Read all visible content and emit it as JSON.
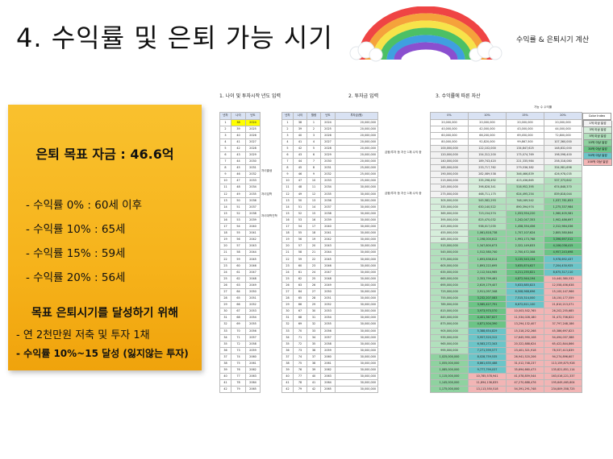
{
  "title": "4. 수익률 및 은퇴 가능 시기",
  "subtitle": "수익률 & 은퇴시기 계산",
  "summary": {
    "target": "은퇴 목표 자금 : 46.6억",
    "rates": [
      "- 수익률    0% : 60세 이후",
      "- 수익률 10% : 65세",
      "- 수익률 15% : 59세",
      "- 수익률 20% : 56세"
    ],
    "goal_heading": "목표 은퇴시기를 달성하기 위해",
    "goal_items": [
      "- 연 2천만원 저축 및 투자 1채",
      "- 수익률 10%~15 달성 (잃지않는 투자)"
    ]
  },
  "sections": {
    "s1": "1. 나이 및 투자시작 년도 입력",
    "s2": "2. 투자금 입력",
    "s3": "3. 수익률에 따른 자산"
  },
  "notes": {
    "n1": "금융/투자 등 자산 1채 수익 중",
    "n2": "금융/투자 등 자산 1채 수익 중",
    "side_a": "자녀출생",
    "side_b": "자녀입학",
    "side_c": "자녀대학진학"
  },
  "sheet": {
    "t1_headers": [
      "년차",
      "나이",
      "년도"
    ],
    "t2_headers": [
      "년차",
      "나이",
      "월령",
      "년도"
    ],
    "t3_header": "투자금(원)",
    "t4_headers": [
      "0%",
      "10%",
      "15%",
      "20%"
    ],
    "t4_note": "가능 수 수익률",
    "rows": [
      {
        "n": 1,
        "age": 38,
        "yr": 2024,
        "inv": "20,000,000",
        "r0": "20,000,000",
        "r10": "20,000,000",
        "r15": "20,000,000",
        "r20": "20,000,000"
      },
      {
        "n": 2,
        "age": 39,
        "yr": 2025,
        "inv": "20,000,000",
        "r0": "40,000,000",
        "r10": "42,000,000",
        "r15": "43,000,000",
        "r20": "44,000,000"
      },
      {
        "n": 3,
        "age": 40,
        "yr": 2026,
        "inv": "20,000,000",
        "r0": "60,000,000",
        "r10": "66,200,000",
        "r15": "69,450,000",
        "r20": "72,800,000"
      },
      {
        "n": 4,
        "age": 41,
        "yr": 2027,
        "inv": "20,000,000",
        "r0": "80,000,000",
        "r10": "92,820,000",
        "r15": "99,867,500",
        "r20": "107,360,000"
      },
      {
        "n": 5,
        "age": 42,
        "yr": 2028,
        "inv": "20,000,000",
        "r0": "100,000,000",
        "r10": "122,102,000",
        "r15": "134,847,625",
        "r20": "148,832,000"
      },
      {
        "n": 6,
        "age": 43,
        "yr": 2029,
        "inv": "20,000,000",
        "r0": "120,000,000",
        "r10": "154,312,200",
        "r15": "175,074,769",
        "r20": "198,598,400"
      },
      {
        "n": 7,
        "age": 44,
        "yr": 2030,
        "inv": "20,000,000",
        "r0": "140,000,000",
        "r10": "189,743,420",
        "r15": "221,335,984",
        "r20": "258,318,080"
      },
      {
        "n": 8,
        "age": 45,
        "yr": 2031,
        "inv": "25,000,000",
        "r0": "165,000,000",
        "r10": "233,717,762",
        "r15": "279,536,382",
        "r20": "334,981,696"
      },
      {
        "n": 9,
        "age": 46,
        "yr": 2032,
        "inv": "25,000,000",
        "r0": "190,000,000",
        "r10": "282,089,538",
        "r15": "346,466,839",
        "r20": "426,978,035"
      },
      {
        "n": 10,
        "age": 47,
        "yr": 2033,
        "inv": "25,000,000",
        "r0": "215,000,000",
        "r10": "335,298,492",
        "r15": "423,436,865",
        "r20": "537,373,642"
      },
      {
        "n": 11,
        "age": 48,
        "yr": 2034,
        "inv": "30,000,000",
        "r0": "245,000,000",
        "r10": "398,828,341",
        "r15": "516,952,395",
        "r20": "674,848,370"
      },
      {
        "n": 12,
        "age": 49,
        "yr": 2035,
        "inv": "30,000,000",
        "r0": "275,000,000",
        "r10": "468,711,175",
        "r15": "624,495,254",
        "r20": "839,818,044"
      },
      {
        "n": 13,
        "age": 50,
        "yr": 2036,
        "inv": "30,000,000",
        "r0": "305,000,000",
        "r10": "545,582,293",
        "r15": "748,169,542",
        "r20": "1,037,781,653"
      },
      {
        "n": 14,
        "age": 51,
        "yr": 2037,
        "inv": "30,000,000",
        "r0": "335,000,000",
        "r10": "630,140,522",
        "r15": "890,394,974",
        "r20": "1,275,337,984"
      },
      {
        "n": 15,
        "age": 52,
        "yr": 2038,
        "inv": "30,000,000",
        "r0": "365,000,000",
        "r10": "723,154,574",
        "r15": "1,053,954,220",
        "r20": "1,560,405,581"
      },
      {
        "n": 16,
        "age": 53,
        "yr": 2039,
        "inv": "30,000,000",
        "r0": "395,000,000",
        "r10": "825,470,032",
        "r15": "1,242,047,353",
        "r20": "1,902,486,697"
      },
      {
        "n": 17,
        "age": 54,
        "yr": 2040,
        "inv": "30,000,000",
        "r0": "425,000,000",
        "r10": "938,017,035",
        "r15": "1,458,354,456",
        "r20": "2,312,984,036"
      },
      {
        "n": 18,
        "age": 55,
        "yr": 2041,
        "inv": "30,000,000",
        "r0": "455,000,000",
        "r10": "1,061,818,738",
        "r15": "1,707,107,624",
        "r20": "2,805,580,844"
      },
      {
        "n": 19,
        "age": 56,
        "yr": 2042,
        "inv": "30,000,000",
        "r0": "485,000,000",
        "r10": "1,198,000,612",
        "r15": "1,993,173,768",
        "r20": "3,396,697,012"
      },
      {
        "n": 20,
        "age": 57,
        "yr": 2043,
        "inv": "30,000,000",
        "r0": "515,000,000",
        "r10": "1,347,800,673",
        "r15": "2,322,149,833",
        "r20": "4,106,036,415"
      },
      {
        "n": 21,
        "age": 58,
        "yr": 2044,
        "inv": "30,000,000",
        "r0": "545,000,000",
        "r10": "1,512,580,740",
        "r15": "2,700,472,308",
        "r20": "4,957,243,698"
      },
      {
        "n": 22,
        "age": 59,
        "yr": 2045,
        "inv": "30,000,000",
        "r0": "575,000,000",
        "r10": "1,693,838,814",
        "r15": "3,135,543,154",
        "r20": "5,978,692,437"
      },
      {
        "n": 23,
        "age": 60,
        "yr": 2046,
        "inv": "30,000,000",
        "r0": "605,000,000",
        "r10": "1,893,222,695",
        "r15": "3,635,874,627",
        "r20": "7,204,430,925"
      },
      {
        "n": 24,
        "age": 61,
        "yr": 2047,
        "inv": "30,000,000",
        "r0": "635,000,000",
        "r10": "2,112,544,965",
        "r15": "4,211,255,821",
        "r20": "8,675,317,110"
      },
      {
        "n": 25,
        "age": 62,
        "yr": 2048,
        "inv": "30,000,000",
        "r0": "665,000,000",
        "r10": "2,353,799,461",
        "r15": "4,872,944,194",
        "r20": "10,440,380,532"
      },
      {
        "n": 26,
        "age": 63,
        "yr": 2049,
        "inv": "30,000,000",
        "r0": "695,000,000",
        "r10": "2,619,179,407",
        "r15": "5,633,885,823",
        "r20": "12,558,456,638"
      },
      {
        "n": 27,
        "age": 64,
        "yr": 2050,
        "inv": "30,000,000",
        "r0": "725,000,000",
        "r10": "2,911,097,348",
        "r15": "6,508,968,696",
        "r20": "15,100,147,966"
      },
      {
        "n": 28,
        "age": 65,
        "yr": 2051,
        "inv": "30,000,000",
        "r0": "755,000,000",
        "r10": "3,232,207,083",
        "r15": "7,515,314,000",
        "r20": "18,150,177,559"
      },
      {
        "n": 29,
        "age": 66,
        "yr": 2052,
        "inv": "30,000,000",
        "r0": "785,000,000",
        "r10": "3,585,427,791",
        "r15": "8,672,611,100",
        "r20": "21,810,213,071"
      },
      {
        "n": 30,
        "age": 67,
        "yr": 2053,
        "inv": "30,000,000",
        "r0": "815,000,000",
        "r10": "3,973,970,570",
        "r15": "10,003,502,765",
        "r20": "26,202,255,685"
      },
      {
        "n": 31,
        "age": 68,
        "yr": 2054,
        "inv": "30,000,000",
        "r0": "845,000,000",
        "r10": "4,401,367,627",
        "r15": "11,534,028,180",
        "r20": "31,472,706,822"
      },
      {
        "n": 32,
        "age": 69,
        "yr": 2055,
        "inv": "30,000,000",
        "r0": "875,000,000",
        "r10": "4,871,504,390",
        "r15": "13,294,132,407",
        "r20": "37,797,248,186"
      },
      {
        "n": 33,
        "age": 70,
        "yr": 2056,
        "inv": "30,000,000",
        "r0": "905,000,000",
        "r10": "5,388,654,829",
        "r15": "15,318,252,268",
        "r20": "45,386,697,823"
      },
      {
        "n": 34,
        "age": 71,
        "yr": 2057,
        "inv": "30,000,000",
        "r0": "935,000,000",
        "r10": "5,957,520,312",
        "r15": "17,645,990,108",
        "r20": "54,494,037,388"
      },
      {
        "n": 35,
        "age": 72,
        "yr": 2058,
        "inv": "30,000,000",
        "r0": "965,000,000",
        "r10": "6,583,272,343",
        "r15": "20,322,888,624",
        "r20": "65,422,844,866"
      },
      {
        "n": 36,
        "age": 73,
        "yr": 2059,
        "inv": "30,000,000",
        "r0": "995,000,000",
        "r10": "7,271,599,577",
        "r15": "23,401,321,918",
        "r20": "78,537,413,839"
      },
      {
        "n": 37,
        "age": 74,
        "yr": 2060,
        "inv": "30,000,000",
        "r0": "1,025,000,000",
        "r10": "8,028,759,535",
        "r15": "26,941,520,206",
        "r20": "94,274,896,607"
      },
      {
        "n": 38,
        "age": 75,
        "yr": 2061,
        "inv": "30,000,000",
        "r0": "1,055,000,000",
        "r10": "8,861,635,488",
        "r15": "31,012,748,237",
        "r20": "113,159,875,928"
      },
      {
        "n": 39,
        "age": 76,
        "yr": 2062,
        "inv": "30,000,000",
        "r0": "1,085,000,000",
        "r10": "9,777,799,037",
        "r15": "35,694,660,473",
        "r20": "135,821,851,114"
      },
      {
        "n": 40,
        "age": 77,
        "yr": 2063,
        "inv": "30,000,000",
        "r0": "1,115,000,000",
        "r10": "10,785,578,941",
        "r15": "41,078,859,544",
        "r20": "163,016,221,337"
      },
      {
        "n": 41,
        "age": 78,
        "yr": 2064,
        "inv": "30,000,000",
        "r0": "1,145,000,000",
        "r10": "11,894,136,835",
        "r15": "47,270,688,476",
        "r20": "195,649,465,604"
      },
      {
        "n": 42,
        "age": 79,
        "yr": 2065,
        "inv": "30,000,000",
        "r0": "1,175,000,000",
        "r10": "13,113,550,518",
        "r15": "54,391,291,748",
        "r20": "234,809,358,725"
      }
    ]
  },
  "legend": {
    "title": "Color Index",
    "items": [
      {
        "label": "1억 이상 달성",
        "color": "#f2f2f2"
      },
      {
        "label": "3억 이상 달성",
        "color": "#d6eedb"
      },
      {
        "label": "5억 이상 달성",
        "color": "#b2e0bd"
      },
      {
        "label": "10억 이상 달성",
        "color": "#8fd2a0"
      },
      {
        "label": "30억 이상 달성",
        "color": "#6cc486"
      },
      {
        "label": "50억 이상 달성",
        "color": "#6cc5c8"
      },
      {
        "label": "100억 이상 달성",
        "color": "#f2b5b5"
      }
    ]
  },
  "colors": {
    "box": "#f6b31b",
    "header": "#d9e2f3",
    "highlight": "#ffff00"
  }
}
